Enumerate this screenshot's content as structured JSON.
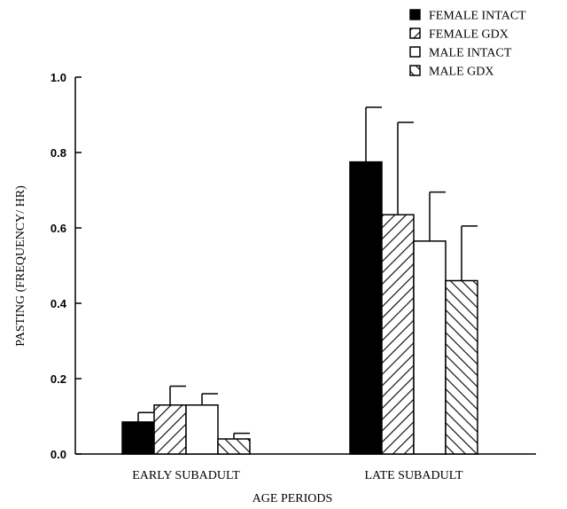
{
  "chart_data": {
    "type": "bar",
    "title": "",
    "xlabel": "AGE PERIODS",
    "ylabel": "PASTING (FREQUENCY/ HR)",
    "ylim": [
      0,
      1.0
    ],
    "yticks": [
      0.0,
      0.2,
      0.4,
      0.6,
      0.8,
      1.0
    ],
    "ytick_labels": [
      "0.0",
      "0.2",
      "0.4",
      "0.6",
      "0.8",
      "1.0"
    ],
    "categories": [
      "EARLY SUBADULT",
      "LATE SUBADULT"
    ],
    "legend_position": "top-right",
    "series": [
      {
        "name": "FEMALE INTACT",
        "fill": "solid-black",
        "values": [
          0.085,
          0.775
        ],
        "errors": [
          0.025,
          0.145
        ]
      },
      {
        "name": "FEMALE GDX",
        "fill": "hatch-down",
        "values": [
          0.13,
          0.635
        ],
        "errors": [
          0.05,
          0.245
        ]
      },
      {
        "name": "MALE INTACT",
        "fill": "white",
        "values": [
          0.13,
          0.565
        ],
        "errors": [
          0.03,
          0.13
        ]
      },
      {
        "name": "MALE GDX",
        "fill": "hatch-up",
        "values": [
          0.04,
          0.46
        ],
        "errors": [
          0.015,
          0.145
        ]
      }
    ]
  }
}
